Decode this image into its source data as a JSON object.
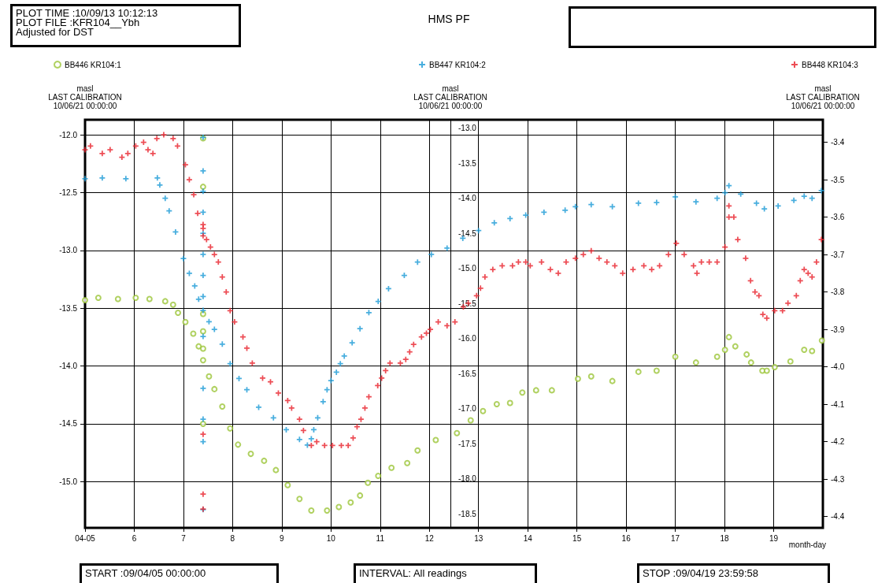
{
  "chart_data": {
    "type": "scatter",
    "title": "HMS PF",
    "xlabel": "month-day",
    "ylabel": "masl\nLAST CALIBRATION\n10/06/21 00:00:00",
    "y2label": "masl\nLAST CALIBRATION\n10/06/21 00:00:00",
    "y3label": "masl\nLAST CALIBRATION\n10/06/21 00:00:00",
    "annotations": [
      "PLOT TIME :10/09/13 10:12:13\nPLOT FILE :KFR104__Ybh\nAdjusted for DST",
      "START :09/04/05 00:00:00",
      "INTERVAL: All readings",
      "STOP :09/04/19 23:59:58"
    ],
    "xlim": [
      5,
      20
    ],
    "xticks": [
      {
        "value": 5,
        "label": "04-05"
      },
      6,
      7,
      8,
      9,
      10,
      11,
      12,
      13,
      14,
      15,
      16,
      17,
      18,
      19
    ],
    "ylim": [
      -15.4,
      -11.87
    ],
    "yticks": [
      {
        "value": -12,
        "label": "-12.0"
      },
      -12.5,
      {
        "value": -13,
        "label": "-13.0"
      },
      -13.5,
      {
        "value": -14,
        "label": "-14.0"
      },
      -14.5,
      {
        "value": -15,
        "label": "-15.0"
      }
    ],
    "y2lim": [
      -18.7,
      -12.88
    ],
    "y2ticks": [
      {
        "value": -13,
        "label": "-13.0"
      },
      -13.5,
      {
        "value": -14,
        "label": "-14.0"
      },
      -14.5,
      {
        "value": -15,
        "label": "-15.0"
      },
      -15.5,
      {
        "value": -16,
        "label": "-16.0"
      },
      -16.5,
      {
        "value": -17,
        "label": "-17.0"
      },
      -17.5,
      {
        "value": -18,
        "label": "-18.0"
      },
      -18.5
    ],
    "y3lim": [
      -4.43,
      -3.34
    ],
    "y3ticks": [
      -3.4,
      -3.5,
      -3.6,
      -3.7,
      -3.8,
      -3.9,
      {
        "value": -4,
        "label": "-4.0"
      },
      -4.1,
      -4.2,
      -4.3,
      -4.4
    ],
    "grid": true,
    "legend": "top",
    "series": [
      {
        "name": "BB446 KR104:1",
        "color": "#9cc53a",
        "marker": "circle",
        "axis": "y",
        "x": [
          5.0,
          5.27,
          5.67,
          6.03,
          6.31,
          6.63,
          6.79,
          6.89,
          7.04,
          7.2,
          7.31,
          7.4,
          7.4,
          7.4,
          7.4,
          7.4,
          7.4,
          7.4,
          7.52,
          7.63,
          7.79,
          7.95,
          8.11,
          8.37,
          8.64,
          8.88,
          9.12,
          9.36,
          9.6,
          9.92,
          10.16,
          10.4,
          10.59,
          10.75,
          10.96,
          11.23,
          11.55,
          11.76,
          12.13,
          12.56,
          12.84,
          13.09,
          13.37,
          13.64,
          13.89,
          14.17,
          14.49,
          15.02,
          15.29,
          15.72,
          16.25,
          16.62,
          17.0,
          17.42,
          17.85,
          18.01,
          18.09,
          18.22,
          18.45,
          18.54,
          18.77,
          18.86,
          19.02,
          19.34,
          19.62,
          19.78,
          19.98
        ],
        "values": [
          -13.43,
          -13.41,
          -13.42,
          -13.41,
          -13.42,
          -13.44,
          -13.47,
          -13.54,
          -13.62,
          -13.72,
          -13.83,
          -12.03,
          -12.45,
          -13.55,
          -13.7,
          -13.85,
          -13.95,
          -14.5,
          -14.09,
          -14.2,
          -14.35,
          -14.54,
          -14.68,
          -14.76,
          -14.82,
          -14.9,
          -15.03,
          -15.15,
          -15.25,
          -15.25,
          -15.22,
          -15.18,
          -15.12,
          -15.01,
          -14.95,
          -14.88,
          -14.84,
          -14.73,
          -14.64,
          -14.58,
          -14.47,
          -14.39,
          -14.33,
          -14.32,
          -14.23,
          -14.21,
          -14.21,
          -14.11,
          -14.09,
          -14.13,
          -14.05,
          -14.04,
          -13.92,
          -13.97,
          -13.92,
          -13.86,
          -13.75,
          -13.83,
          -13.9,
          -13.97,
          -14.04,
          -14.04,
          -14.01,
          -13.96,
          -13.86,
          -13.87,
          -13.78
        ]
      },
      {
        "name": "BB447 KR104:2",
        "color": "#1a9ad6",
        "marker": "cross",
        "axis": "y2",
        "x": [
          5.0,
          5.35,
          5.83,
          6.47,
          6.52,
          6.63,
          6.71,
          6.84,
          7.0,
          7.12,
          7.23,
          7.31,
          7.4,
          7.4,
          7.4,
          7.4,
          7.4,
          7.4,
          7.4,
          7.4,
          7.4,
          7.4,
          7.4,
          7.4,
          7.4,
          7.4,
          7.52,
          7.63,
          7.79,
          7.95,
          8.13,
          8.29,
          8.53,
          8.83,
          9.09,
          9.36,
          9.52,
          9.6,
          9.65,
          9.73,
          9.84,
          9.92,
          10.0,
          10.11,
          10.19,
          10.27,
          10.43,
          10.59,
          10.77,
          10.96,
          11.17,
          11.49,
          11.76,
          12.04,
          12.36,
          12.68,
          13.0,
          13.32,
          13.64,
          13.96,
          14.33,
          14.76,
          14.97,
          15.29,
          15.72,
          16.25,
          16.62,
          17.0,
          17.42,
          17.85,
          18.01,
          18.09,
          18.33,
          18.65,
          18.81,
          19.09,
          19.41,
          19.62,
          19.78,
          19.97
        ],
        "values": [
          -13.72,
          -13.71,
          -13.72,
          -13.71,
          -13.81,
          -14.0,
          -14.18,
          -14.48,
          -14.86,
          -15.07,
          -15.25,
          -15.44,
          -13.13,
          -13.61,
          -13.9,
          -14.2,
          -14.5,
          -14.8,
          -15.1,
          -15.4,
          -15.6,
          -15.97,
          -16.71,
          -17.15,
          -17.47,
          -18.44,
          -15.76,
          -15.87,
          -16.08,
          -16.36,
          -16.57,
          -16.73,
          -16.98,
          -17.13,
          -17.3,
          -17.44,
          -17.52,
          -17.43,
          -17.3,
          -17.13,
          -16.9,
          -16.73,
          -16.6,
          -16.48,
          -16.36,
          -16.25,
          -16.06,
          -15.86,
          -15.63,
          -15.47,
          -15.29,
          -15.1,
          -14.91,
          -14.8,
          -14.71,
          -14.57,
          -14.46,
          -14.35,
          -14.29,
          -14.24,
          -14.2,
          -14.17,
          -14.12,
          -14.09,
          -14.12,
          -14.07,
          -14.06,
          -13.98,
          -14.05,
          -14.0,
          -13.92,
          -13.82,
          -13.94,
          -14.07,
          -14.15,
          -14.11,
          -14.03,
          -13.97,
          -14.0,
          -13.89
        ]
      },
      {
        "name": "BB448 KR104:3",
        "color": "#e8202a",
        "marker": "cross",
        "axis": "y3",
        "x": [
          5.0,
          5.11,
          5.35,
          5.51,
          5.75,
          5.87,
          6.03,
          6.19,
          6.28,
          6.38,
          6.46,
          6.6,
          6.79,
          6.88,
          7.04,
          7.12,
          7.21,
          7.29,
          7.4,
          7.4,
          7.4,
          7.4,
          7.4,
          7.4,
          7.47,
          7.55,
          7.63,
          7.71,
          7.79,
          7.87,
          7.95,
          8.04,
          8.21,
          8.29,
          8.4,
          8.61,
          8.77,
          8.93,
          9.12,
          9.2,
          9.36,
          9.44,
          9.6,
          9.71,
          9.87,
          10.03,
          10.21,
          10.35,
          10.45,
          10.53,
          10.61,
          10.69,
          10.77,
          10.95,
          11.03,
          11.11,
          11.2,
          11.41,
          11.52,
          11.6,
          11.68,
          11.84,
          11.94,
          12.02,
          12.18,
          12.36,
          12.52,
          12.69,
          12.79,
          12.96,
          13.04,
          13.13,
          13.29,
          13.48,
          13.69,
          13.81,
          13.96,
          14.05,
          14.28,
          14.46,
          14.62,
          14.78,
          14.97,
          15.13,
          15.29,
          15.45,
          15.61,
          15.77,
          15.93,
          16.14,
          16.36,
          16.52,
          16.68,
          16.86,
          17.02,
          17.18,
          17.37,
          17.44,
          17.53,
          17.69,
          17.85,
          18.01,
          18.09,
          18.09,
          18.19,
          18.27,
          18.43,
          18.53,
          18.62,
          18.7,
          18.78,
          18.86,
          19.02,
          19.18,
          19.29,
          19.46,
          19.54,
          19.62,
          19.7,
          19.78,
          19.87,
          19.97
        ],
        "values": [
          -3.42,
          -3.41,
          -3.43,
          -3.42,
          -3.44,
          -3.43,
          -3.41,
          -3.4,
          -3.42,
          -3.43,
          -3.39,
          -3.38,
          -3.39,
          -3.41,
          -3.46,
          -3.5,
          -3.54,
          -3.59,
          -3.62,
          -3.63,
          -3.65,
          -4.18,
          -4.34,
          -4.38,
          -3.66,
          -3.68,
          -3.7,
          -3.72,
          -3.76,
          -3.8,
          -3.85,
          -3.88,
          -3.92,
          -3.95,
          -3.99,
          -4.03,
          -4.04,
          -4.07,
          -4.09,
          -4.11,
          -4.14,
          -4.17,
          -4.21,
          -4.2,
          -4.21,
          -4.21,
          -4.21,
          -4.21,
          -4.19,
          -4.16,
          -4.14,
          -4.11,
          -4.08,
          -4.05,
          -4.03,
          -4.01,
          -3.99,
          -3.99,
          -3.98,
          -3.96,
          -3.94,
          -3.92,
          -3.91,
          -3.9,
          -3.88,
          -3.89,
          -3.88,
          -3.84,
          -3.83,
          -3.81,
          -3.79,
          -3.76,
          -3.74,
          -3.73,
          -3.73,
          -3.72,
          -3.72,
          -3.73,
          -3.72,
          -3.74,
          -3.75,
          -3.72,
          -3.71,
          -3.7,
          -3.69,
          -3.71,
          -3.72,
          -3.73,
          -3.75,
          -3.74,
          -3.73,
          -3.74,
          -3.73,
          -3.7,
          -3.67,
          -3.7,
          -3.73,
          -3.75,
          -3.72,
          -3.72,
          -3.72,
          -3.68,
          -3.57,
          -3.6,
          -3.6,
          -3.66,
          -3.71,
          -3.77,
          -3.8,
          -3.81,
          -3.86,
          -3.87,
          -3.85,
          -3.85,
          -3.83,
          -3.81,
          -3.77,
          -3.74,
          -3.75,
          -3.76,
          -3.72,
          -3.66
        ]
      }
    ]
  }
}
